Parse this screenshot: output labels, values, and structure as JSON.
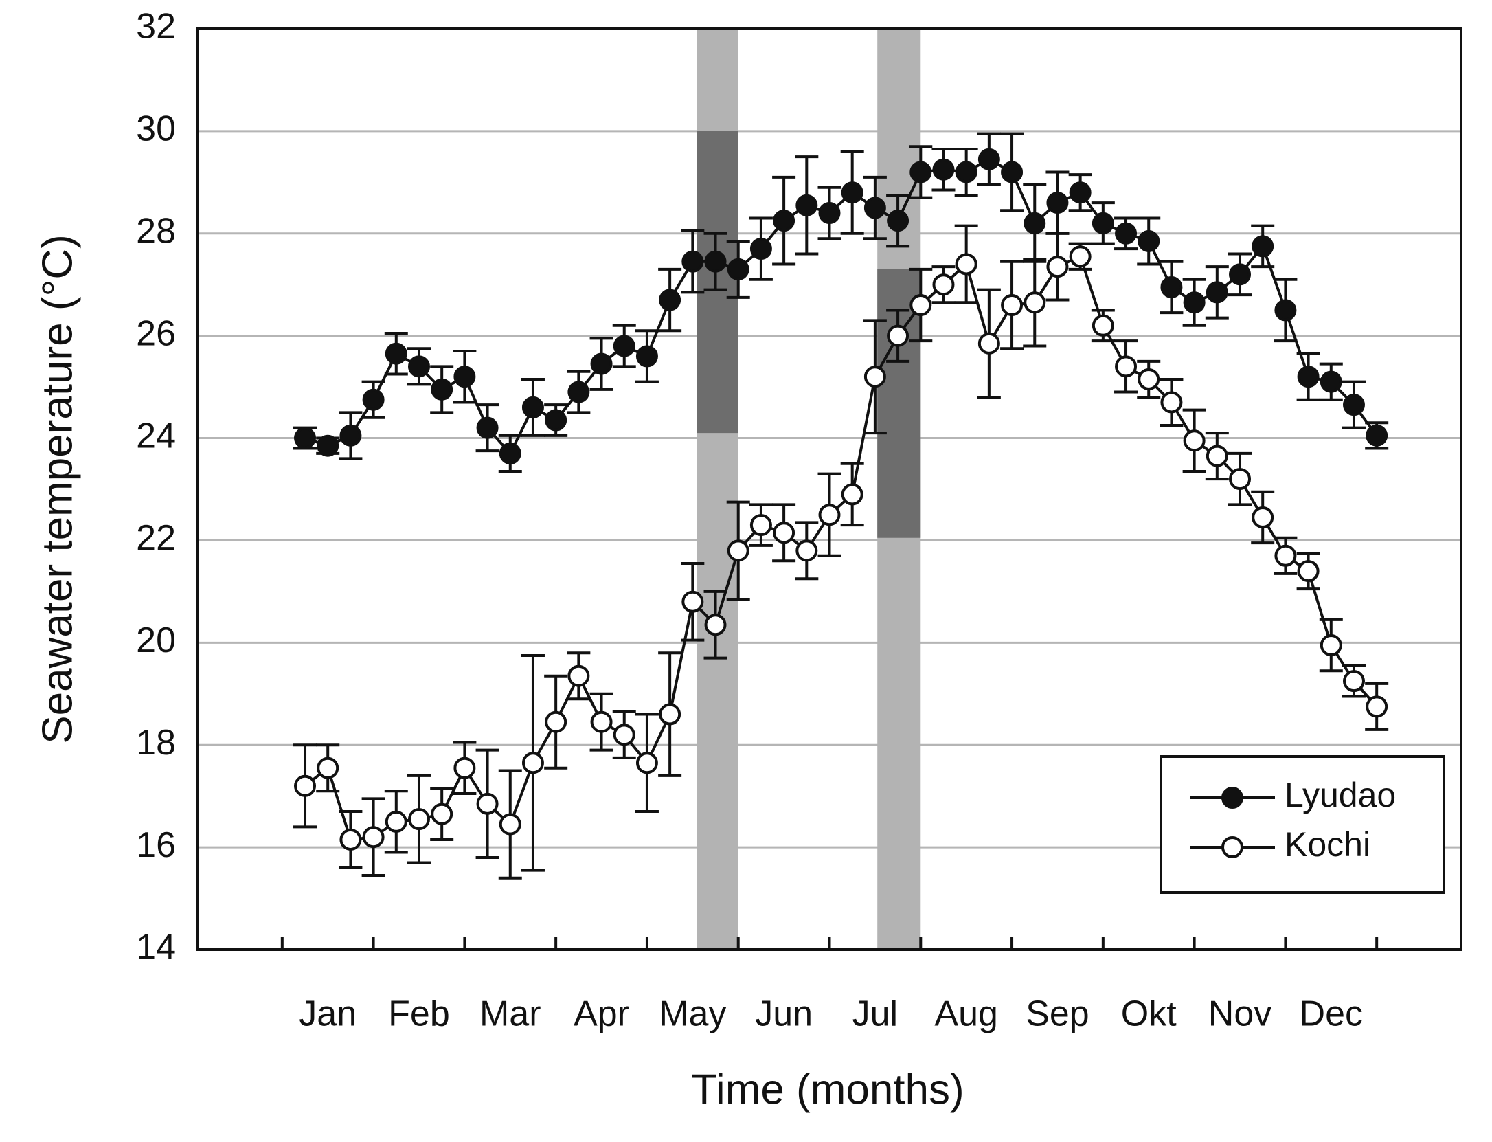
{
  "chart_data": {
    "type": "line",
    "xlabel": "Time (months)",
    "ylabel": "Seawater temperature (°C)",
    "categories": [
      "Jan",
      "Feb",
      "Mar",
      "Apr",
      "May",
      "Jun",
      "Jul",
      "Aug",
      "Sep",
      "Okt",
      "Nov",
      "Dec"
    ],
    "x": [
      1,
      2,
      3,
      4,
      5,
      6,
      7,
      8,
      9,
      10,
      11,
      12,
      13,
      14,
      15,
      16,
      17,
      18,
      19,
      20,
      21,
      22,
      23,
      24,
      25,
      26,
      27,
      28,
      29,
      30,
      31,
      32,
      33,
      34,
      35,
      36,
      37,
      38,
      39,
      40,
      41,
      42,
      43,
      44,
      45,
      46,
      47,
      48
    ],
    "xlim": [
      -3.7,
      51.7
    ],
    "xticks": [
      0,
      4,
      8,
      12,
      16,
      20,
      24,
      28,
      32,
      36,
      40,
      44,
      48
    ],
    "ylim": [
      14,
      32
    ],
    "yticks": [
      14,
      16,
      18,
      20,
      22,
      24,
      26,
      28,
      30,
      32
    ],
    "grid": true,
    "legend": "lower right",
    "shaded_regions": [
      {
        "x": [
          18.2,
          20
        ],
        "dark_y": [
          24.1,
          30
        ]
      },
      {
        "x": [
          26.1,
          28
        ],
        "dark_y": [
          22.05,
          27.3
        ]
      }
    ],
    "series": [
      {
        "name": "Lyudao",
        "color": "#111111",
        "marker_fill": "#111111",
        "values": [
          24.0,
          23.85,
          24.05,
          24.75,
          25.65,
          25.4,
          24.95,
          25.2,
          24.2,
          23.7,
          24.6,
          24.35,
          24.9,
          25.45,
          25.8,
          25.6,
          26.7,
          27.45,
          27.45,
          27.3,
          27.7,
          28.25,
          28.55,
          28.4,
          28.8,
          28.5,
          28.25,
          29.2,
          29.25,
          29.2,
          29.45,
          29.2,
          28.2,
          28.6,
          28.8,
          28.2,
          28.0,
          27.85,
          26.95,
          26.65,
          26.85,
          27.2,
          27.75,
          26.5,
          25.2,
          25.1,
          24.65,
          24.05
        ],
        "errors": [
          0.2,
          0.15,
          0.45,
          0.35,
          0.4,
          0.35,
          0.45,
          0.5,
          0.45,
          0.35,
          0.55,
          0.3,
          0.4,
          0.5,
          0.4,
          0.5,
          0.6,
          0.6,
          0.55,
          0.55,
          0.6,
          0.85,
          0.95,
          0.5,
          0.8,
          0.6,
          0.5,
          0.5,
          0.4,
          0.45,
          0.5,
          0.75,
          0.75,
          0.6,
          0.35,
          0.4,
          0.3,
          0.45,
          0.5,
          0.45,
          0.5,
          0.4,
          0.4,
          0.6,
          0.45,
          0.35,
          0.45,
          0.25
        ]
      },
      {
        "name": "Kochi",
        "color": "#111111",
        "marker_fill": "#ffffff",
        "values": [
          17.2,
          17.55,
          16.15,
          16.2,
          16.5,
          16.55,
          16.65,
          17.55,
          16.85,
          16.45,
          17.65,
          18.45,
          19.35,
          18.45,
          18.2,
          17.65,
          18.6,
          20.8,
          20.35,
          21.8,
          22.3,
          22.15,
          21.8,
          22.5,
          22.9,
          25.2,
          26.0,
          26.6,
          27.0,
          27.4,
          25.85,
          26.6,
          26.65,
          27.35,
          27.55,
          26.2,
          25.4,
          25.15,
          24.7,
          23.95,
          23.65,
          23.2,
          22.45,
          21.7,
          21.4,
          19.95,
          19.25,
          18.75
        ],
        "errors": [
          0.8,
          0.45,
          0.55,
          0.75,
          0.6,
          0.85,
          0.5,
          0.5,
          1.05,
          1.05,
          2.1,
          0.9,
          0.45,
          0.55,
          0.45,
          0.95,
          1.2,
          0.75,
          0.65,
          0.95,
          0.4,
          0.55,
          0.55,
          0.8,
          0.6,
          1.1,
          0.5,
          0.7,
          0.35,
          0.75,
          1.05,
          0.85,
          0.85,
          0.65,
          0.25,
          0.3,
          0.5,
          0.35,
          0.45,
          0.6,
          0.45,
          0.5,
          0.5,
          0.35,
          0.35,
          0.5,
          0.3,
          0.45
        ]
      }
    ]
  }
}
